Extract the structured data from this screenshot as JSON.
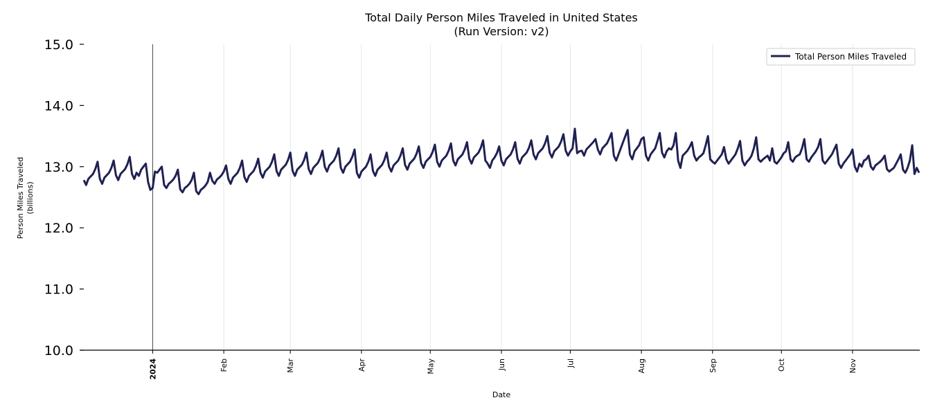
{
  "chart_data": {
    "type": "line",
    "title": "Total Daily Person Miles Traveled in United States",
    "subtitle": "(Run Version: v2)",
    "xlabel": "Date",
    "ylabel": "Person Miles Traveled",
    "ylabel_unit": "(billions)",
    "ylim": [
      10.0,
      15.0
    ],
    "xlim": [
      "2023-12-02",
      "2024-11-30"
    ],
    "yticks": [
      "10.0",
      "11.0",
      "12.0",
      "13.0",
      "14.0",
      "15.0"
    ],
    "xticks": [
      {
        "date": "2024-01-01",
        "label": "2024",
        "bold": true
      },
      {
        "date": "2024-02-01",
        "label": "Feb"
      },
      {
        "date": "2024-03-01",
        "label": "Mar"
      },
      {
        "date": "2024-04-01",
        "label": "Apr"
      },
      {
        "date": "2024-05-01",
        "label": "May"
      },
      {
        "date": "2024-06-01",
        "label": "Jun"
      },
      {
        "date": "2024-07-01",
        "label": "Jul"
      },
      {
        "date": "2024-08-01",
        "label": "Aug"
      },
      {
        "date": "2024-09-01",
        "label": "Sep"
      },
      {
        "date": "2024-10-01",
        "label": "Oct"
      },
      {
        "date": "2024-11-01",
        "label": "Nov"
      }
    ],
    "grid": "vertical",
    "legend_position": "top-right",
    "series": [
      {
        "name": "Total Person Miles Traveled",
        "color": "#1f2152",
        "weeks": [
          {
            "week_of": "2023-12-02",
            "values": [
              12.78,
              12.7,
              12.8,
              12.84,
              12.88,
              12.96,
              13.08
            ]
          },
          {
            "week_of": "2023-12-09",
            "values": [
              12.8,
              12.72,
              12.82,
              12.86,
              12.9,
              12.98,
              13.1
            ]
          },
          {
            "week_of": "2023-12-16",
            "values": [
              12.86,
              12.78,
              12.88,
              12.92,
              12.96,
              13.04,
              13.16
            ]
          },
          {
            "week_of": "2023-12-23",
            "values": [
              12.88,
              12.8,
              12.9,
              12.85,
              12.95,
              13.0,
              13.05
            ]
          },
          {
            "week_of": "2023-12-30",
            "values": [
              12.75,
              12.62,
              12.65,
              12.92,
              12.9,
              12.95,
              13.0
            ]
          },
          {
            "week_of": "2024-01-06",
            "values": [
              12.7,
              12.65,
              12.72,
              12.75,
              12.79,
              12.85,
              12.95
            ]
          },
          {
            "week_of": "2024-01-13",
            "values": [
              12.63,
              12.58,
              12.65,
              12.68,
              12.72,
              12.78,
              12.9
            ]
          },
          {
            "week_of": "2024-01-20",
            "values": [
              12.6,
              12.55,
              12.62,
              12.65,
              12.69,
              12.75,
              12.9
            ]
          },
          {
            "week_of": "2024-01-27",
            "values": [
              12.77,
              12.72,
              12.79,
              12.82,
              12.86,
              12.92,
              13.02
            ]
          },
          {
            "week_of": "2024-02-03",
            "values": [
              12.8,
              12.72,
              12.82,
              12.86,
              12.9,
              12.98,
              13.1
            ]
          },
          {
            "week_of": "2024-02-10",
            "values": [
              12.83,
              12.75,
              12.85,
              12.89,
              12.93,
              13.01,
              13.13
            ]
          },
          {
            "week_of": "2024-02-17",
            "values": [
              12.9,
              12.82,
              12.92,
              12.96,
              13.0,
              13.08,
              13.2
            ]
          },
          {
            "week_of": "2024-02-24",
            "values": [
              12.93,
              12.85,
              12.95,
              12.99,
              13.03,
              13.11,
              13.23
            ]
          },
          {
            "week_of": "2024-03-02",
            "values": [
              12.93,
              12.85,
              12.95,
              12.99,
              13.03,
              13.11,
              13.23
            ]
          },
          {
            "week_of": "2024-03-09",
            "values": [
              12.96,
              12.88,
              12.98,
              13.02,
              13.06,
              13.14,
              13.26
            ]
          },
          {
            "week_of": "2024-03-16",
            "values": [
              13.0,
              12.92,
              13.02,
              13.06,
              13.1,
              13.18,
              13.3
            ]
          },
          {
            "week_of": "2024-03-23",
            "values": [
              12.98,
              12.9,
              13.0,
              13.04,
              13.08,
              13.16,
              13.28
            ]
          },
          {
            "week_of": "2024-03-30",
            "values": [
              12.9,
              12.82,
              12.92,
              12.96,
              13.0,
              13.08,
              13.2
            ]
          },
          {
            "week_of": "2024-04-06",
            "values": [
              12.93,
              12.85,
              12.95,
              12.99,
              13.03,
              13.11,
              13.23
            ]
          },
          {
            "week_of": "2024-04-13",
            "values": [
              13.0,
              12.92,
              13.02,
              13.06,
              13.1,
              13.18,
              13.3
            ]
          },
          {
            "week_of": "2024-04-20",
            "values": [
              13.03,
              12.95,
              13.05,
              13.09,
              13.13,
              13.21,
              13.33
            ]
          },
          {
            "week_of": "2024-04-27",
            "values": [
              13.06,
              12.98,
              13.08,
              13.12,
              13.16,
              13.24,
              13.36
            ]
          },
          {
            "week_of": "2024-05-04",
            "values": [
              13.08,
              13.0,
              13.1,
              13.14,
              13.18,
              13.26,
              13.38
            ]
          },
          {
            "week_of": "2024-05-11",
            "values": [
              13.1,
              13.02,
              13.12,
              13.16,
              13.2,
              13.28,
              13.4
            ]
          },
          {
            "week_of": "2024-05-18",
            "values": [
              13.13,
              13.05,
              13.15,
              13.19,
              13.23,
              13.31,
              13.43
            ]
          },
          {
            "week_of": "2024-05-25",
            "values": [
              13.1,
              13.05,
              12.98,
              13.1,
              13.15,
              13.22,
              13.33
            ]
          },
          {
            "week_of": "2024-06-01",
            "values": [
              13.1,
              13.02,
              13.12,
              13.16,
              13.2,
              13.28,
              13.4
            ]
          },
          {
            "week_of": "2024-06-08",
            "values": [
              13.13,
              13.05,
              13.15,
              13.19,
              13.23,
              13.31,
              13.43
            ]
          },
          {
            "week_of": "2024-06-15",
            "values": [
              13.2,
              13.12,
              13.22,
              13.26,
              13.3,
              13.38,
              13.5
            ]
          },
          {
            "week_of": "2024-06-22",
            "values": [
              13.23,
              13.15,
              13.25,
              13.29,
              13.33,
              13.41,
              13.53
            ]
          },
          {
            "week_of": "2024-06-29",
            "values": [
              13.26,
              13.18,
              13.25,
              13.3,
              13.62,
              13.22,
              13.25
            ]
          },
          {
            "week_of": "2024-07-06",
            "values": [
              13.26,
              13.18,
              13.28,
              13.32,
              13.36,
              13.4,
              13.45
            ]
          },
          {
            "week_of": "2024-07-13",
            "values": [
              13.28,
              13.2,
              13.3,
              13.34,
              13.38,
              13.46,
              13.55
            ]
          },
          {
            "week_of": "2024-07-20",
            "values": [
              13.18,
              13.1,
              13.2,
              13.3,
              13.4,
              13.5,
              13.6
            ]
          },
          {
            "week_of": "2024-07-27",
            "values": [
              13.2,
              13.12,
              13.25,
              13.3,
              13.35,
              13.45,
              13.48
            ]
          },
          {
            "week_of": "2024-08-03",
            "values": [
              13.18,
              13.1,
              13.2,
              13.25,
              13.3,
              13.42,
              13.55
            ]
          },
          {
            "week_of": "2024-08-10",
            "values": [
              13.23,
              13.15,
              13.25,
              13.3,
              13.28,
              13.35,
              13.55
            ]
          },
          {
            "week_of": "2024-08-17",
            "values": [
              13.1,
              12.98,
              13.18,
              13.22,
              13.26,
              13.32,
              13.4
            ]
          },
          {
            "week_of": "2024-08-24",
            "values": [
              13.18,
              13.1,
              13.15,
              13.18,
              13.22,
              13.35,
              13.5
            ]
          },
          {
            "week_of": "2024-08-31",
            "values": [
              13.12,
              13.08,
              13.05,
              13.1,
              13.15,
              13.2,
              13.32
            ]
          },
          {
            "week_of": "2024-09-07",
            "values": [
              13.12,
              13.05,
              13.1,
              13.15,
              13.2,
              13.3,
              13.42
            ]
          },
          {
            "week_of": "2024-09-14",
            "values": [
              13.1,
              13.02,
              13.08,
              13.12,
              13.18,
              13.3,
              13.48
            ]
          },
          {
            "week_of": "2024-09-21",
            "values": [
              13.12,
              13.08,
              13.12,
              13.15,
              13.18,
              13.1,
              13.3
            ]
          },
          {
            "week_of": "2024-09-28",
            "values": [
              13.08,
              13.05,
              13.1,
              13.15,
              13.22,
              13.25,
              13.4
            ]
          },
          {
            "week_of": "2024-10-05",
            "values": [
              13.12,
              13.08,
              13.15,
              13.18,
              13.2,
              13.3,
              13.45
            ]
          },
          {
            "week_of": "2024-10-12",
            "values": [
              13.12,
              13.08,
              13.15,
              13.2,
              13.25,
              13.32,
              13.45
            ]
          },
          {
            "week_of": "2024-10-19",
            "values": [
              13.1,
              13.05,
              13.1,
              13.15,
              13.2,
              13.28,
              13.36
            ]
          },
          {
            "week_of": "2024-10-26",
            "values": [
              13.05,
              12.98,
              13.05,
              13.1,
              13.15,
              13.2,
              13.28
            ]
          },
          {
            "week_of": "2024-11-02",
            "values": [
              13.0,
              12.92,
              13.05,
              13.0,
              13.1,
              13.12,
              13.18
            ]
          },
          {
            "week_of": "2024-11-09",
            "values": [
              13.0,
              12.95,
              13.02,
              13.05,
              13.08,
              13.12,
              13.18
            ]
          },
          {
            "week_of": "2024-11-16",
            "values": [
              12.96,
              12.92,
              12.95,
              12.98,
              13.05,
              13.12,
              13.2
            ]
          },
          {
            "week_of": "2024-11-23",
            "values": [
              12.95,
              12.9,
              12.98,
              13.1,
              13.35,
              12.88,
              12.98
            ]
          },
          {
            "week_of": "2024-11-30",
            "values": [
              12.9
            ]
          }
        ]
      }
    ]
  }
}
